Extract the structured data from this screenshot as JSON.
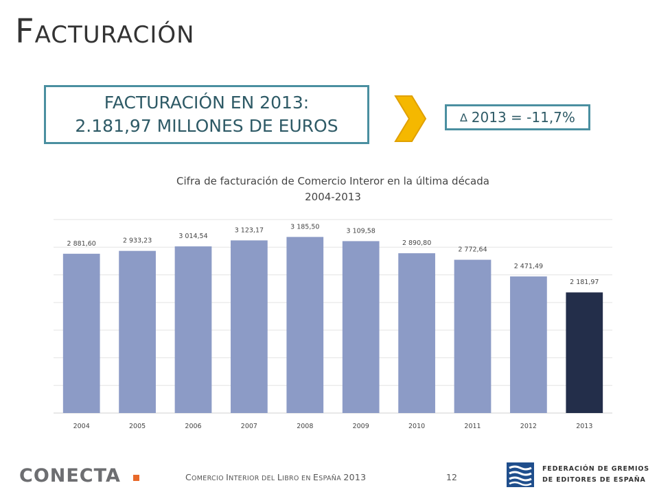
{
  "header": {
    "title_initial": "F",
    "title_rest": "ACTURACIÓN"
  },
  "headline": {
    "line1": "FACTURACIÓN EN 2013:",
    "line2": "2.181,97 MILLONES DE EUROS"
  },
  "delta": {
    "symbol": "∆",
    "text": "2013 = -11,7%"
  },
  "colors": {
    "accent_border": "#4a8fa0",
    "chevron": "#f5b800",
    "bar": "#8c9bc6",
    "bar_highlight": "#232e4a"
  },
  "chart_data": {
    "type": "bar",
    "title": "Cifra de facturación de Comercio Interor en la última década",
    "subtitle": "2004-2013",
    "categories": [
      "2004",
      "2005",
      "2006",
      "2007",
      "2008",
      "2009",
      "2010",
      "2011",
      "2012",
      "2013"
    ],
    "values": [
      2881.6,
      2933.23,
      3014.54,
      3123.17,
      3185.5,
      3109.58,
      2890.8,
      2772.64,
      2471.49,
      2181.97
    ],
    "data_labels": [
      "2 881,60",
      "2 933,23",
      "3 014,54",
      "3 123,17",
      "3 185,50",
      "3 109,58",
      "2 890,80",
      "2 772,64",
      "2 471,49",
      "2 181,97"
    ],
    "highlight_index": 9,
    "ylim": [
      0,
      3500
    ],
    "grid": true,
    "legend": "none"
  },
  "footer": {
    "logo_text": "CONECTA",
    "text_parts": [
      {
        "cap": "C",
        "sc": "OMERCIO "
      },
      {
        "cap": "I",
        "sc": "NTERIOR DEL "
      },
      {
        "cap": "L",
        "sc": "IBRO EN "
      },
      {
        "cap": "E",
        "sc": "SPAÑA "
      }
    ],
    "year": "2013",
    "page_number": "12",
    "federation_line1": "FEDERACIÓN DE GREMIOS",
    "federation_line2": "DE EDITORES DE ESPAÑA"
  }
}
